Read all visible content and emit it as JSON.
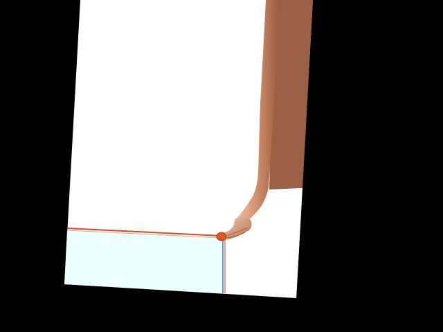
{
  "scene": {
    "description_visible_text": "",
    "colors": {
      "background": "#000000",
      "canvas_white": "#ffffff",
      "arm_skin": "#c9896a",
      "back_wall_brown": "#9a5f45",
      "highlight_line": "#d24a1d",
      "cursor_line": "#3b3bd6",
      "selection_fill": "#ecffff",
      "dot": "#d65a20"
    }
  }
}
